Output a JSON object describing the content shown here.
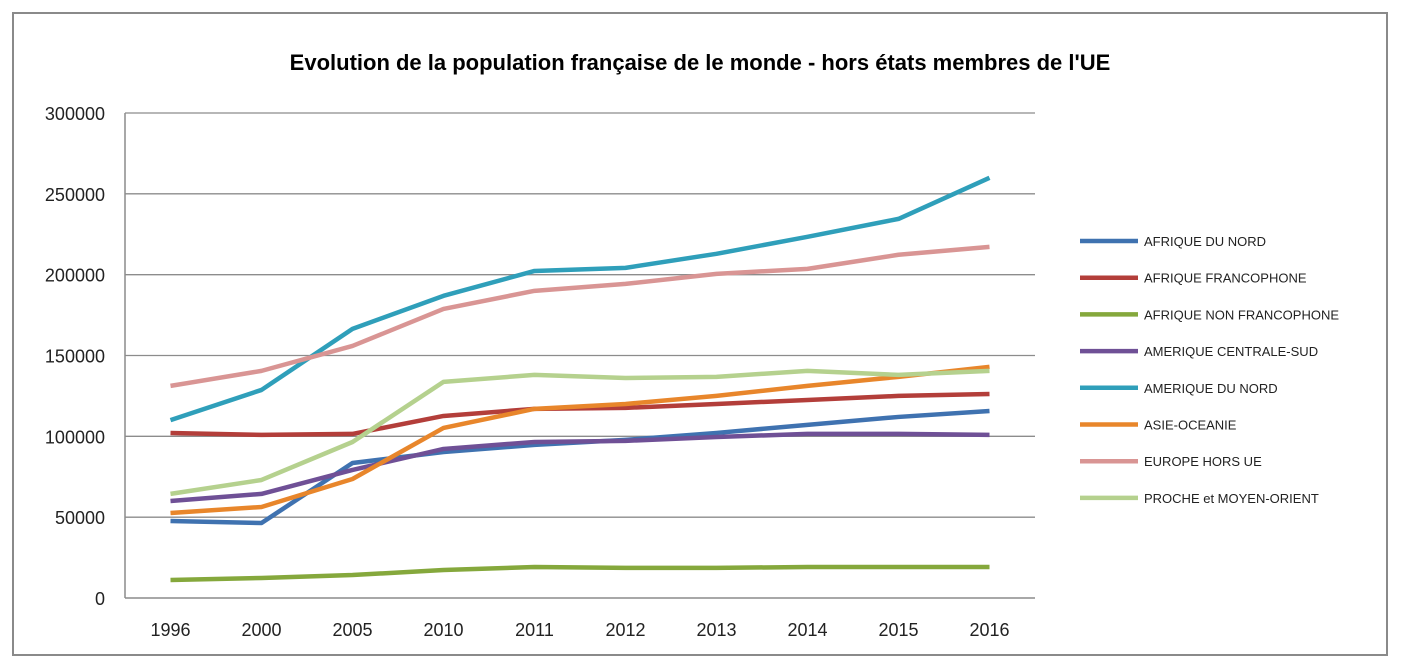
{
  "chart_data": {
    "type": "line",
    "title": "Evolution de  la population française de le monde - hors états membres de l'UE",
    "xlabel": "",
    "ylabel": "",
    "categories": [
      "1996",
      "2000",
      "2005",
      "2010",
      "2011",
      "2012",
      "2013",
      "2014",
      "2015",
      "2016"
    ],
    "ylim": [
      0,
      300000
    ],
    "yticks": [
      "0",
      "50000",
      "100000",
      "150000",
      "200000",
      "250000",
      "300000"
    ],
    "grid": true,
    "legend": "right",
    "series": [
      {
        "name": "AFRIQUE DU NORD",
        "color": "#3f72b0",
        "values": [
          47600,
          46400,
          83500,
          90300,
          94700,
          97800,
          102100,
          107100,
          112000,
          115700
        ]
      },
      {
        "name": "AFRIQUE FRANCOPHONE",
        "color": "#b33e3a",
        "values": [
          102100,
          100900,
          101500,
          112600,
          117000,
          117600,
          120000,
          122500,
          125000,
          126200
        ]
      },
      {
        "name": "AFRIQUE NON FRANCOPHONE",
        "color": "#85a83c",
        "values": [
          11100,
          12400,
          14200,
          17300,
          19200,
          18600,
          18600,
          19200,
          19200,
          19200
        ]
      },
      {
        "name": "AMERIQUE CENTRALE-SUD",
        "color": "#6f5096",
        "values": [
          60000,
          64400,
          79200,
          92200,
          96500,
          97200,
          99600,
          101500,
          101500,
          100900
        ]
      },
      {
        "name": "AMERIQUE DU NORD",
        "color": "#2f9fba",
        "values": [
          110000,
          128700,
          166500,
          186900,
          202300,
          204200,
          212900,
          223400,
          234500,
          259900
        ]
      },
      {
        "name": "ASIE-OCEANIE",
        "color": "#e8862b",
        "values": [
          52600,
          56300,
          73600,
          105200,
          117000,
          120000,
          125000,
          131200,
          136800,
          143000
        ]
      },
      {
        "name": "EUROPE HORS UE",
        "color": "#d99594",
        "values": [
          131200,
          140500,
          155900,
          178800,
          190000,
          194300,
          200500,
          203600,
          212300,
          217200
        ]
      },
      {
        "name": "PROCHE et MOYEN-ORIENT",
        "color": "#b5d18e",
        "values": [
          64400,
          73000,
          96500,
          133700,
          138000,
          136100,
          136800,
          140500,
          138000,
          140500
        ]
      }
    ]
  }
}
